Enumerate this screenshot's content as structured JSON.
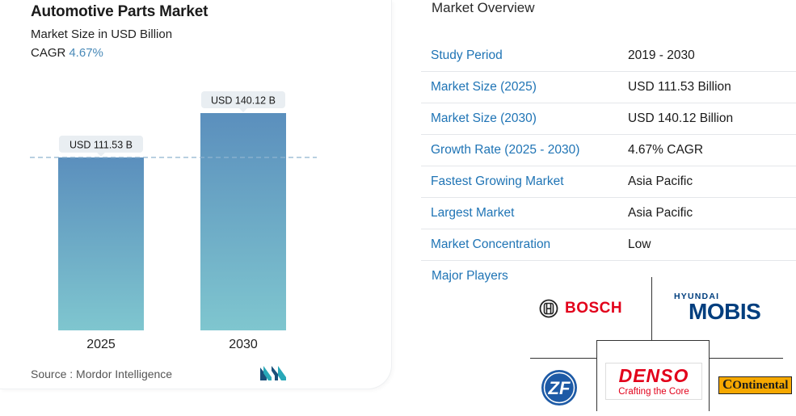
{
  "header": {
    "title": "Automotive Parts Market",
    "subtitle": "Market Size in USD Billion",
    "cagr_label": "CAGR",
    "cagr_value": "4.67%"
  },
  "chart_data": {
    "type": "bar",
    "categories": [
      "2025",
      "2030"
    ],
    "values": [
      111.53,
      140.12
    ],
    "data_labels": [
      "USD 111.53 B",
      "USD 140.12 B"
    ],
    "title": "Automotive Parts Market",
    "ylabel": "Market Size in USD Billion",
    "reference_line": 111.53,
    "colors": {
      "bar_top": "#5b8fbd",
      "bar_bottom": "#7fc6cf",
      "label_bg": "#e9eef2",
      "ref_line": "#8fb4cf"
    }
  },
  "source": "Source :  Mordor Intelligence",
  "overview": {
    "title": "Market Overview",
    "rows": [
      {
        "key": "Study Period",
        "value": "2019 - 2030"
      },
      {
        "key": "Market Size (2025)",
        "value": "USD 111.53 Billion"
      },
      {
        "key": "Market Size (2030)",
        "value": "USD 140.12 Billion"
      },
      {
        "key": "Growth Rate (2025 - 2030)",
        "value": "4.67% CAGR"
      },
      {
        "key": "Fastest Growing Market",
        "value": "Asia Pacific"
      },
      {
        "key": "Largest Market",
        "value": "Asia Pacific"
      },
      {
        "key": "Market Concentration",
        "value": "Low"
      }
    ],
    "major_players_label": "Major Players"
  },
  "players": {
    "bosch": "BOSCH",
    "hyundai": "HYUNDAI",
    "mobis": "MOBIS",
    "denso": "DENSO",
    "denso_tagline": "Crafting the Core",
    "zf": "ZF",
    "continental": "Ontinental"
  },
  "accent_colors": {
    "key_text": "#1f74b5",
    "brand_red": "#e2001a",
    "mobis_blue": "#003e7e"
  }
}
